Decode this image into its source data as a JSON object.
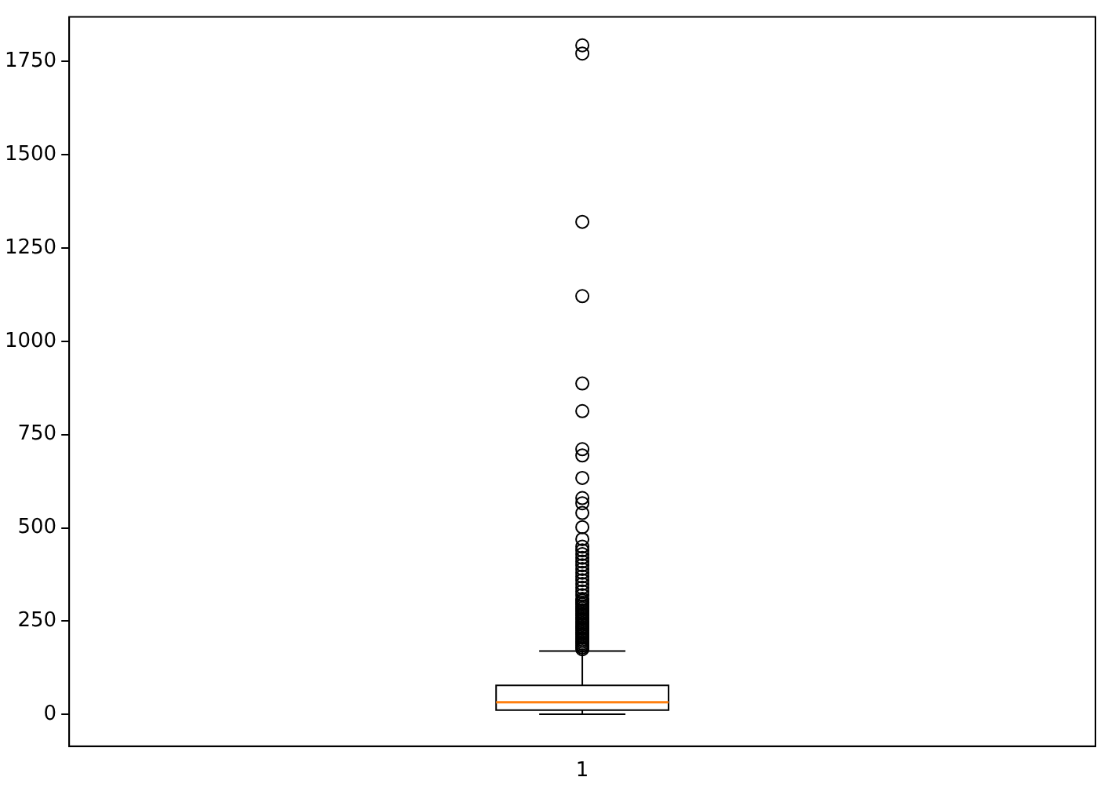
{
  "chart_data": {
    "type": "box",
    "categories": [
      "1"
    ],
    "boxes": [
      {
        "low": 1,
        "q1": 12,
        "median": 33,
        "q3": 78,
        "high": 170,
        "outliers": [
          175,
          180,
          185,
          190,
          195,
          200,
          205,
          210,
          215,
          220,
          225,
          230,
          235,
          240,
          245,
          250,
          255,
          260,
          265,
          270,
          275,
          280,
          285,
          290,
          295,
          300,
          305,
          310,
          320,
          330,
          340,
          350,
          360,
          370,
          380,
          390,
          400,
          410,
          420,
          430,
          440,
          450,
          470,
          502,
          540,
          566,
          580,
          634,
          694,
          711,
          813,
          887,
          1121,
          1320,
          1771,
          1793
        ]
      }
    ],
    "color": "#000000",
    "ylim": [
      -85,
      1869
    ],
    "yticks": [
      0,
      250,
      500,
      750,
      1000,
      1250,
      1500,
      1750
    ],
    "grid": false
  }
}
